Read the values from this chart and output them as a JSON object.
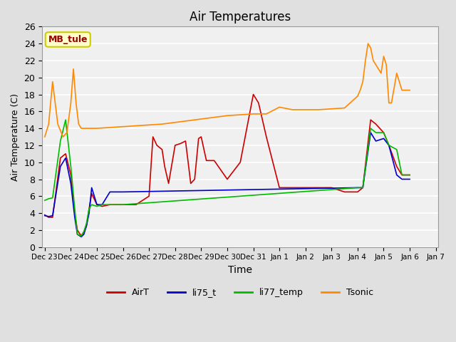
{
  "title": "Air Temperatures",
  "xlabel": "Time",
  "ylabel": "Air Temperature (C)",
  "background_color": "#e0e0e0",
  "plot_bg_color": "#f0f0f0",
  "ylim": [
    0,
    26
  ],
  "annotation_label": "MB_tule",
  "annotation_color": "#990000",
  "annotation_bg": "#ffffcc",
  "annotation_edge": "#cccc00",
  "series": {
    "AirT": {
      "color": "#cc0000",
      "x": [
        0,
        0.15,
        0.3,
        0.6,
        0.8,
        1.0,
        1.15,
        1.25,
        1.4,
        1.5,
        1.6,
        1.7,
        1.8,
        2.0,
        2.2,
        2.5,
        3.0,
        3.5,
        4.0,
        4.15,
        4.3,
        4.5,
        4.6,
        4.75,
        5.0,
        5.2,
        5.4,
        5.6,
        5.75,
        5.9,
        6.0,
        6.2,
        6.5,
        7.0,
        7.5,
        8.0,
        8.2,
        8.5,
        9.0,
        9.5,
        10.0,
        10.5,
        11.0,
        11.5,
        12.0,
        12.2,
        12.5,
        12.7,
        13.0,
        13.2,
        13.5,
        13.7,
        14.0
      ],
      "y": [
        3.8,
        3.5,
        3.5,
        10.5,
        11.0,
        8.5,
        4.0,
        2.0,
        1.3,
        1.8,
        2.5,
        4.5,
        6.3,
        5.0,
        4.8,
        5.0,
        5.0,
        5.0,
        6.0,
        13.0,
        12.0,
        11.5,
        9.5,
        7.5,
        12.0,
        12.2,
        12.5,
        7.5,
        8.0,
        12.8,
        13.0,
        10.2,
        10.2,
        8.0,
        10.0,
        18.0,
        17.0,
        13.0,
        7.0,
        7.0,
        7.0,
        7.0,
        7.0,
        6.5,
        6.5,
        7.0,
        15.0,
        14.5,
        13.5,
        12.0,
        9.5,
        8.5,
        8.5
      ]
    },
    "li75_t": {
      "color": "#0000cc",
      "x": [
        0,
        0.15,
        0.3,
        0.6,
        0.8,
        1.0,
        1.15,
        1.25,
        1.4,
        1.5,
        1.6,
        1.7,
        1.8,
        2.0,
        2.2,
        2.5,
        3.0,
        12.0,
        12.2,
        12.5,
        12.7,
        13.0,
        13.2,
        13.5,
        13.7,
        14.0
      ],
      "y": [
        3.7,
        3.6,
        3.7,
        9.5,
        10.5,
        7.5,
        3.5,
        1.5,
        1.2,
        1.5,
        2.5,
        4.0,
        7.0,
        5.0,
        5.0,
        6.5,
        6.5,
        7.0,
        7.0,
        13.5,
        12.5,
        12.8,
        12.0,
        8.5,
        8.0,
        8.0
      ]
    },
    "li77_temp": {
      "color": "#00bb00",
      "x": [
        0,
        0.15,
        0.3,
        0.6,
        0.8,
        1.0,
        1.15,
        1.25,
        1.4,
        1.5,
        1.6,
        1.7,
        1.8,
        2.0,
        2.2,
        2.5,
        3.0,
        12.0,
        12.2,
        12.5,
        12.7,
        13.0,
        13.2,
        13.5,
        13.7,
        14.0
      ],
      "y": [
        5.5,
        5.7,
        5.8,
        12.5,
        15.0,
        9.5,
        4.5,
        1.5,
        1.3,
        1.8,
        2.8,
        4.5,
        5.0,
        4.8,
        5.0,
        5.0,
        5.0,
        7.0,
        7.0,
        14.0,
        13.5,
        13.5,
        12.0,
        11.5,
        8.5,
        8.5
      ]
    },
    "Tsonic": {
      "color": "#ff8800",
      "x": [
        0,
        0.15,
        0.3,
        0.5,
        0.7,
        0.85,
        1.0,
        1.1,
        1.2,
        1.3,
        1.4,
        1.5,
        1.7,
        1.8,
        2.0,
        2.5,
        3.0,
        3.5,
        4.0,
        4.5,
        5.0,
        5.5,
        6.0,
        6.5,
        7.0,
        7.5,
        8.0,
        8.5,
        9.0,
        9.5,
        10.0,
        10.5,
        11.0,
        11.5,
        12.0,
        12.1,
        12.2,
        12.3,
        12.4,
        12.5,
        12.6,
        12.7,
        12.8,
        12.9,
        13.0,
        13.05,
        13.1,
        13.2,
        13.3,
        13.5,
        13.7,
        14.0
      ],
      "y": [
        13.0,
        14.5,
        19.5,
        14.5,
        13.0,
        13.5,
        17.0,
        21.0,
        17.0,
        14.5,
        14.0,
        14.0,
        14.0,
        14.0,
        14.0,
        14.1,
        14.2,
        14.3,
        14.4,
        14.5,
        14.7,
        14.9,
        15.1,
        15.3,
        15.5,
        15.6,
        15.7,
        15.7,
        16.5,
        16.2,
        16.2,
        16.2,
        16.3,
        16.4,
        17.8,
        18.5,
        19.5,
        22.0,
        24.0,
        23.5,
        22.0,
        21.5,
        21.0,
        20.5,
        22.5,
        22.0,
        21.5,
        17.0,
        17.0,
        20.5,
        18.5,
        18.5
      ]
    }
  },
  "xtick_labels": [
    "Dec 23",
    "Dec 24",
    "Dec 25",
    "Dec 26",
    "Dec 27",
    "Dec 28",
    "Dec 29",
    "Dec 30",
    "Dec 31",
    "Jan 1",
    "Jan 2",
    "Jan 3",
    "Jan 4",
    "Jan 5",
    "Jan 6",
    "Jan 7"
  ],
  "xtick_positions": [
    0,
    1,
    2,
    3,
    4,
    5,
    6,
    7,
    8,
    9,
    10,
    11,
    12,
    13,
    14,
    15
  ],
  "xlim": [
    -0.1,
    15.1
  ],
  "legend_entries": [
    "AirT",
    "li75_t",
    "li77_temp",
    "Tsonic"
  ],
  "legend_colors": [
    "#cc0000",
    "#0000cc",
    "#00bb00",
    "#ff8800"
  ]
}
